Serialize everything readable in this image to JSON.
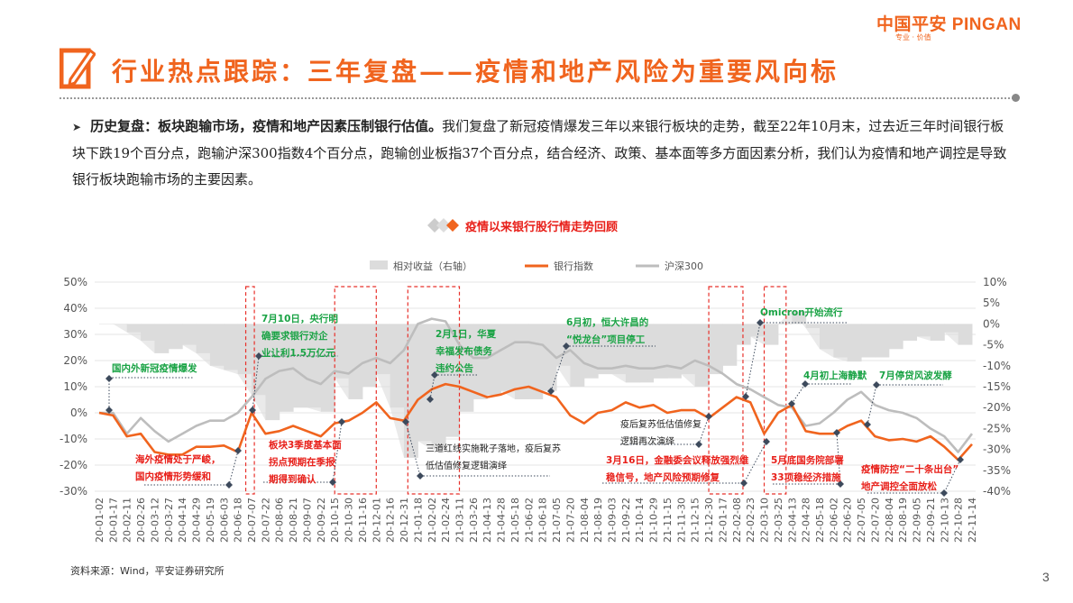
{
  "header": {
    "logo": "中国平安 PINGAN",
    "logo_tagline": "专业 · 价值",
    "title": "行业热点跟踪：三年复盘——疫情和地产风险为重要风向标",
    "accent_color": "#f0641e"
  },
  "body": {
    "bold_lead": "历史复盘：板块跑输市场，疫情和地产因素压制银行估值。",
    "text": "我们复盘了新冠疫情爆发三年以来银行板块的走势，截至22年10月末，过去近三年时间银行板块下跌19个百分点，跑输沪深300指数4个百分点，跑输创业板指37个百分点，结合经济、政策、基本面等多方面因素分析，我们认为疫情和地产调控是导致银行板块跑输市场的主要因素。"
  },
  "chart_data": {
    "type": "line",
    "title": "疫情以来银行股行情走势回顾",
    "legend": [
      "相对收益（右轴）",
      "银行指数",
      "沪深300"
    ],
    "legend_position": "top",
    "colors": {
      "relative": "#dcdcdc",
      "bank": "#f0641e",
      "hs300": "#bdbdbd",
      "highlight": "#e8302a",
      "marker": "#3d4a5c",
      "green_note": "#1aa345",
      "red_note": "#e8201a",
      "dark_note": "#222222"
    },
    "left_axis": {
      "ticks": [
        "50%",
        "40%",
        "30%",
        "20%",
        "10%",
        "0%",
        "-10%",
        "-20%",
        "-30%"
      ],
      "range": [
        -30,
        50
      ]
    },
    "right_axis": {
      "ticks": [
        "10%",
        "5%",
        "0%",
        "-5%",
        "-10%",
        "-15%",
        "-20%",
        "-25%",
        "-30%",
        "-35%",
        "-40%"
      ],
      "range": [
        -40,
        10
      ]
    },
    "grid": "horizontal",
    "categories": [
      "20-01-02",
      "20-01-17",
      "20-02-11",
      "20-02-26",
      "20-03-12",
      "20-03-27",
      "20-04-14",
      "20-04-29",
      "20-05-19",
      "20-06-03",
      "20-06-18",
      "20-07-07",
      "20-07-22",
      "20-08-06",
      "20-08-21",
      "20-09-07",
      "20-09-22",
      "20-10-15",
      "20-10-30",
      "20-11-16",
      "20-12-01",
      "20-12-16",
      "20-12-31",
      "21-01-18",
      "21-02-02",
      "21-02-24",
      "21-03-11",
      "21-03-26",
      "21-04-13",
      "21-04-28",
      "21-05-18",
      "21-06-02",
      "21-06-18",
      "21-07-05",
      "21-07-20",
      "21-08-04",
      "21-08-19",
      "21-09-03",
      "21-09-22",
      "21-10-14",
      "21-10-29",
      "21-11-15",
      "21-11-30",
      "21-12-15",
      "21-12-30",
      "22-01-17",
      "22-02-08",
      "22-02-23",
      "22-03-10",
      "22-03-25",
      "22-04-13",
      "22-04-28",
      "22-05-18",
      "22-06-02",
      "22-06-20",
      "22-07-05",
      "22-07-20",
      "22-08-04",
      "22-08-19",
      "22-09-05",
      "22-09-21",
      "22-10-13",
      "22-10-28",
      "22-11-14"
    ],
    "series": [
      {
        "name": "银行指数",
        "axis": "left",
        "values": [
          0,
          -1,
          -9,
          -8,
          -15,
          -16,
          -16,
          -13,
          -13,
          -12.5,
          -15,
          0,
          -8,
          -7,
          -5,
          -7,
          -9,
          -4,
          -3,
          0,
          4,
          -2,
          -3,
          5,
          9,
          11,
          10,
          8,
          6,
          7,
          9,
          10,
          8,
          6,
          -1,
          -4,
          0,
          1,
          4,
          2,
          3,
          0,
          1,
          1,
          -2,
          2,
          6,
          4,
          -8,
          0,
          3,
          -7,
          -8,
          -8,
          -5,
          -3,
          -9,
          -10.5,
          -10,
          -11,
          -9,
          -13,
          -18,
          -12
        ]
      },
      {
        "name": "沪深300",
        "axis": "left",
        "values": [
          0,
          0,
          -8,
          -2,
          -7,
          -11,
          -8,
          -5,
          -3,
          -3,
          0,
          6,
          13,
          16,
          17,
          13,
          11,
          16,
          15,
          19,
          21,
          19,
          24,
          34,
          36,
          35,
          26,
          21,
          21,
          24,
          27,
          27,
          26,
          21,
          24,
          19,
          17,
          17,
          18,
          17,
          17,
          18,
          17,
          20,
          18,
          15,
          11,
          9,
          6,
          3,
          2,
          -5,
          -4,
          0,
          5,
          8,
          3,
          1,
          0,
          -2,
          -6,
          -9,
          -15,
          -8
        ]
      },
      {
        "name": "相对收益（右轴）",
        "axis": "right",
        "values": [
          0,
          0,
          -2,
          -4,
          -7,
          -6,
          -5,
          -7,
          -10,
          -11,
          -12,
          -17,
          -23,
          -21,
          -20,
          -20,
          -21,
          -13,
          -18,
          -15,
          -12,
          -20,
          -32,
          -28,
          -30,
          -27,
          -21,
          -18,
          -17,
          -16,
          -18,
          -18,
          -16,
          -10,
          -15,
          -13,
          -12,
          -12,
          -14,
          -14,
          -13,
          -13,
          -12,
          -15,
          -12,
          -10,
          -5,
          -3,
          -5,
          0,
          3,
          -1,
          -6,
          -8,
          -9,
          -8,
          -8,
          -6,
          -4,
          -3,
          -4,
          -2,
          -5,
          -2
        ]
      }
    ],
    "highlight_periods": [
      [
        "20-06-29",
        "20-07-10"
      ],
      [
        "20-10-15",
        "20-12-01"
      ],
      [
        "21-01-05",
        "21-03-11"
      ],
      [
        "21-12-30",
        "22-02-15"
      ],
      [
        "22-03-10",
        "22-04-05"
      ]
    ],
    "annotations": [
      {
        "color": "green",
        "lines": [
          "国内外新冠疫情爆发"
        ]
      },
      {
        "color": "green",
        "lines": [
          "7月10日，央行明",
          "确要求银行对企",
          "业让利1.5万亿元"
        ]
      },
      {
        "color": "red",
        "lines": [
          "海外疫情处于严峻，",
          "国内疫情形势缓和"
        ]
      },
      {
        "color": "red",
        "lines": [
          "板块3季度基本面",
          "拐点预期在季报",
          "期得到确认"
        ]
      },
      {
        "color": "green",
        "lines": [
          "2月1日，华夏",
          "幸福发布债务",
          "违约公告"
        ]
      },
      {
        "color": "dark",
        "lines": [
          "三道红线实施靴子落地，疫后复苏",
          "低估值修复逻辑演绎"
        ]
      },
      {
        "color": "green",
        "lines": [
          "6月初，恒大许昌的",
          "“悦龙台”项目停工"
        ]
      },
      {
        "color": "dark",
        "lines": [
          "疫后复苏低估值修复",
          "逻辑再次演绎"
        ]
      },
      {
        "color": "red",
        "lines": [
          "3月16日，金融委会议释放强烈维",
          "稳信号，地产风险预期修复"
        ]
      },
      {
        "color": "green",
        "lines": [
          "Omicron开始流行"
        ]
      },
      {
        "color": "red",
        "lines": [
          "5月底国务院部署",
          "33项稳经济措施"
        ]
      },
      {
        "color": "green",
        "lines": [
          "4月初上海静默"
        ]
      },
      {
        "color": "green",
        "lines": [
          "7月停贷风波发酵"
        ]
      },
      {
        "color": "red",
        "lines": [
          "疫情防控“二十条出台”",
          "地产调控全面放松"
        ]
      }
    ]
  },
  "footer": {
    "source": "资料来源：Wind，平安证券研究所",
    "page": "3"
  }
}
